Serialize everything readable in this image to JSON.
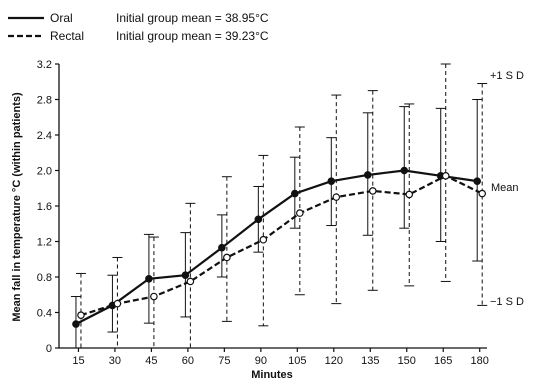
{
  "chart_data": {
    "type": "line",
    "title": "",
    "xlabel": "Minutes",
    "ylabel": "Mean fall in temperature °C (within patients)",
    "x": [
      15,
      30,
      45,
      60,
      75,
      90,
      105,
      120,
      135,
      150,
      165,
      180
    ],
    "x_ticks": [
      "15",
      "30",
      "45",
      "60",
      "75",
      "90",
      "105",
      "120",
      "135",
      "150",
      "165",
      "180"
    ],
    "y_ticks": [
      "0",
      "0.4",
      "0.8",
      "1.2",
      "1.6",
      "2.0",
      "2.4",
      "2.8",
      "3.2"
    ],
    "xlim": [
      7,
      183
    ],
    "ylim": [
      0,
      3.2
    ],
    "grid": false,
    "legend": [
      {
        "label": "Oral",
        "note": "Initial group mean = 38.95°C",
        "line": "solid",
        "marker": "filled-circle"
      },
      {
        "label": "Rectal",
        "note": "Initial group mean = 39.23°C",
        "line": "dashed",
        "marker": "open-circle"
      }
    ],
    "series": [
      {
        "name": "Oral",
        "values": [
          0.27,
          0.48,
          0.78,
          0.82,
          1.13,
          1.45,
          1.74,
          1.88,
          1.95,
          2.0,
          1.94,
          1.88
        ],
        "upper": [
          0.58,
          0.82,
          1.28,
          1.3,
          1.5,
          1.82,
          2.15,
          2.37,
          2.65,
          2.72,
          2.7,
          2.8
        ],
        "lower": [
          0.0,
          0.18,
          0.28,
          0.35,
          0.8,
          1.08,
          1.35,
          1.38,
          1.27,
          1.35,
          1.2,
          0.98
        ]
      },
      {
        "name": "Rectal",
        "values": [
          0.37,
          0.5,
          0.58,
          0.75,
          1.02,
          1.22,
          1.52,
          1.7,
          1.77,
          1.73,
          1.94,
          1.74
        ],
        "upper": [
          0.84,
          1.02,
          1.25,
          1.63,
          1.93,
          2.17,
          2.49,
          2.85,
          2.9,
          2.75,
          3.2,
          2.98
        ],
        "lower": [
          0.0,
          0.0,
          0.0,
          0.0,
          0.3,
          0.25,
          0.6,
          0.5,
          0.65,
          0.7,
          0.75,
          0.48
        ]
      }
    ],
    "annotations": {
      "upper": "+1 S D",
      "mean": "Mean",
      "lower": "−1 S D"
    },
    "colors": {
      "line": "#111111",
      "background": "#ffffff"
    }
  }
}
